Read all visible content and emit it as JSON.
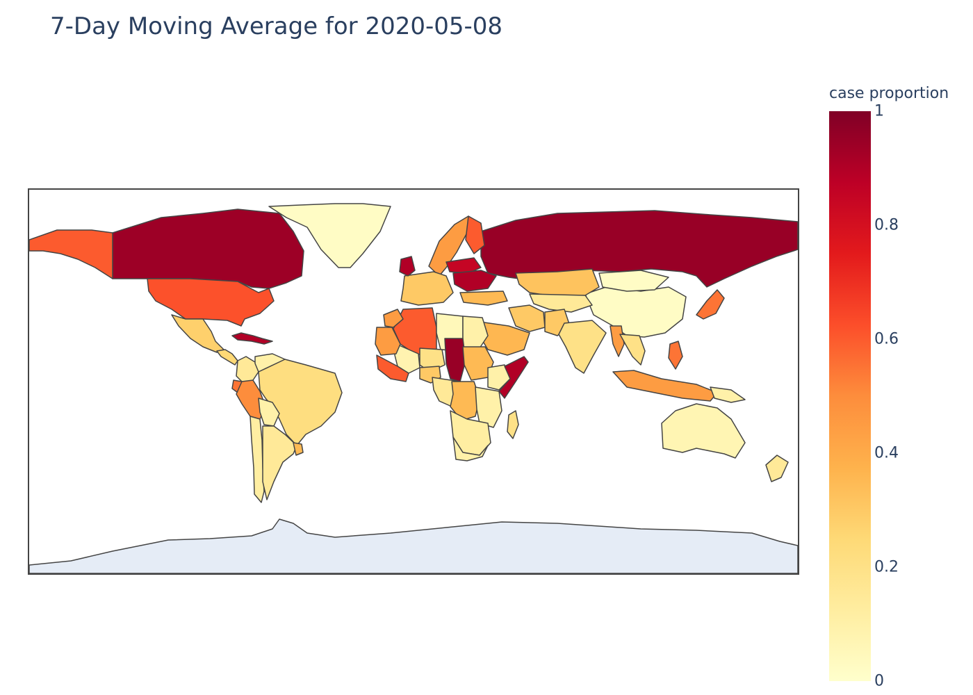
{
  "title": "7-Day Moving Average for 2020-05-08",
  "colorbar": {
    "title": "case proportion",
    "ticks": [
      "1",
      "0.8",
      "0.6",
      "0.4",
      "0.2",
      "0"
    ],
    "range": [
      0,
      1
    ],
    "colorscale": [
      "#ffffcc",
      "#ffeda0",
      "#fed976",
      "#feb24c",
      "#fd8d3c",
      "#fc4e2a",
      "#e31a1c",
      "#bd0026",
      "#800026"
    ]
  },
  "map": {
    "projection": "equirectangular",
    "no_data_color": "#e5ecf6",
    "border_color": "#444444",
    "regions": [
      {
        "name": "Canada",
        "value": 0.94
      },
      {
        "name": "Alaska",
        "value": 0.6
      },
      {
        "name": "Greenland",
        "value": 0.02
      },
      {
        "name": "United States",
        "value": 0.62
      },
      {
        "name": "Mexico",
        "value": 0.28
      },
      {
        "name": "Central America",
        "value": 0.25
      },
      {
        "name": "Cuba",
        "value": 0.9
      },
      {
        "name": "Colombia",
        "value": 0.15
      },
      {
        "name": "Venezuela",
        "value": 0.1
      },
      {
        "name": "Ecuador",
        "value": 0.55
      },
      {
        "name": "Peru",
        "value": 0.5
      },
      {
        "name": "Brazil",
        "value": 0.22
      },
      {
        "name": "Bolivia",
        "value": 0.1
      },
      {
        "name": "Chile",
        "value": 0.12
      },
      {
        "name": "Argentina",
        "value": 0.15
      },
      {
        "name": "Uruguay",
        "value": 0.35
      },
      {
        "name": "Russia",
        "value": 0.95
      },
      {
        "name": "China",
        "value": 0.02
      },
      {
        "name": "Mongolia",
        "value": 0.02
      },
      {
        "name": "Kazakhstan",
        "value": 0.32
      },
      {
        "name": "Central Asia",
        "value": 0.15
      },
      {
        "name": "Iran",
        "value": 0.3
      },
      {
        "name": "Arabian Peninsula",
        "value": 0.36
      },
      {
        "name": "Pakistan",
        "value": 0.3
      },
      {
        "name": "India",
        "value": 0.2
      },
      {
        "name": "Myanmar",
        "value": 0.45
      },
      {
        "name": "Southeast Asia",
        "value": 0.2
      },
      {
        "name": "Indonesia",
        "value": 0.45
      },
      {
        "name": "Philippines",
        "value": 0.55
      },
      {
        "name": "Papua New Guinea",
        "value": 0.1
      },
      {
        "name": "Japan",
        "value": 0.55
      },
      {
        "name": "Australia",
        "value": 0.07
      },
      {
        "name": "New Zealand",
        "value": 0.15
      },
      {
        "name": "Scandinavia",
        "value": 0.45
      },
      {
        "name": "Finland",
        "value": 0.6
      },
      {
        "name": "Western Europe",
        "value": 0.3
      },
      {
        "name": "United Kingdom",
        "value": 0.9
      },
      {
        "name": "Belarus",
        "value": 0.85
      },
      {
        "name": "Ukraine",
        "value": 0.9
      },
      {
        "name": "Turkey",
        "value": 0.35
      },
      {
        "name": "Algeria",
        "value": 0.6
      },
      {
        "name": "Morocco",
        "value": 0.45
      },
      {
        "name": "Libya",
        "value": 0.05
      },
      {
        "name": "Egypt",
        "value": 0.1
      },
      {
        "name": "Mali",
        "value": 0.08
      },
      {
        "name": "Mauritania",
        "value": 0.45
      },
      {
        "name": "Niger",
        "value": 0.2
      },
      {
        "name": "Chad",
        "value": 0.95
      },
      {
        "name": "Sudan",
        "value": 0.35
      },
      {
        "name": "Ethiopia",
        "value": 0.1
      },
      {
        "name": "Somalia",
        "value": 0.9
      },
      {
        "name": "West Africa Coast",
        "value": 0.6
      },
      {
        "name": "Nigeria",
        "value": 0.3
      },
      {
        "name": "Central Africa",
        "value": 0.15
      },
      {
        "name": "DR Congo",
        "value": 0.35
      },
      {
        "name": "East Africa",
        "value": 0.1
      },
      {
        "name": "Southern Africa",
        "value": 0.12
      },
      {
        "name": "South Africa",
        "value": 0.1
      },
      {
        "name": "Madagascar",
        "value": 0.2
      },
      {
        "name": "Antarctica",
        "value": null
      }
    ]
  }
}
